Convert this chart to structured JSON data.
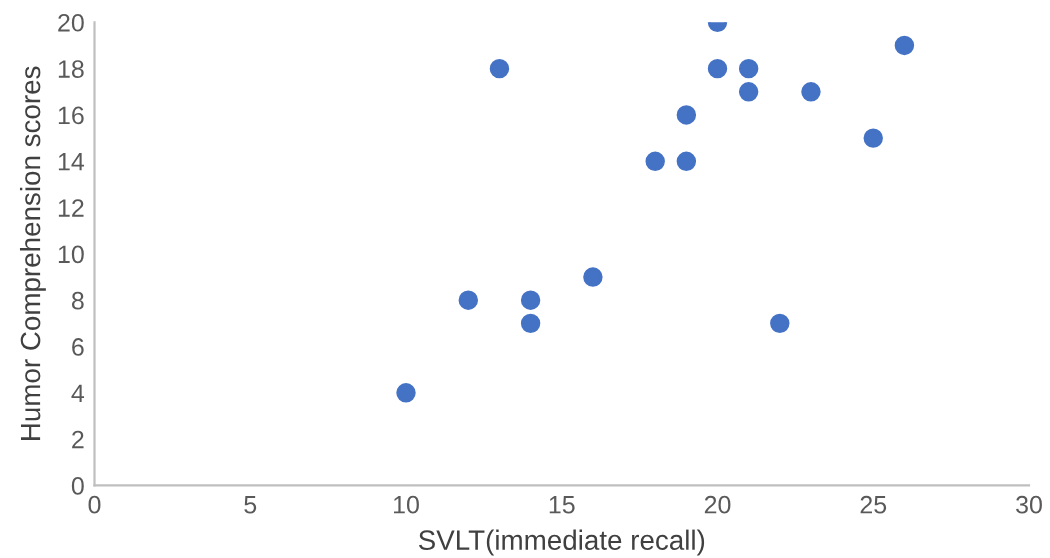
{
  "chart_data": {
    "type": "scatter",
    "xlabel": "SVLT(immediate recall)",
    "ylabel": "Humor Comprehension scores",
    "x": [
      10,
      12,
      13,
      14,
      14,
      16,
      18,
      19,
      19,
      20,
      20,
      21,
      21,
      22,
      23,
      25,
      26
    ],
    "values": [
      4,
      8,
      18,
      8,
      7,
      9,
      14,
      16,
      14,
      20,
      18,
      18,
      17,
      7,
      17,
      15,
      19
    ],
    "color": "#4472c4",
    "marker": "circle",
    "xlim": [
      0,
      30
    ],
    "xticks": [
      0,
      5,
      10,
      15,
      20,
      25,
      30
    ],
    "ylim": [
      0,
      20
    ],
    "yticks": [
      0,
      2,
      4,
      6,
      8,
      10,
      12,
      14,
      16,
      18,
      20
    ],
    "grid": false,
    "legend": false
  }
}
